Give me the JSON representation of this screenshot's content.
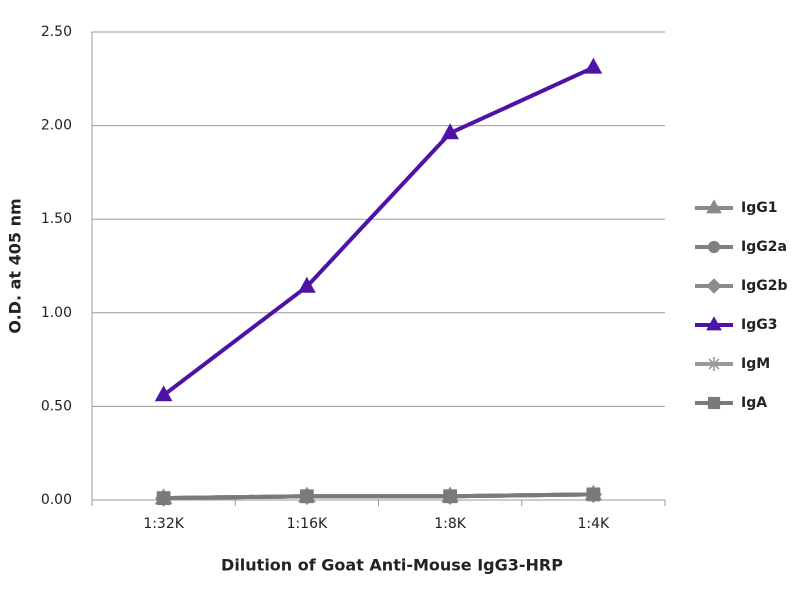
{
  "chart_data": {
    "type": "line",
    "x_label": "Dilution of Goat Anti-Mouse IgG3-HRP",
    "y_label": "O.D. at 405 nm",
    "categories": [
      "1:32K",
      "1:16K",
      "1:8K",
      "1:4K"
    ],
    "series": [
      {
        "name": "IgG1",
        "color": "#8a8a8a",
        "marker": "triangle",
        "values": [
          0.01,
          0.02,
          0.02,
          0.03
        ]
      },
      {
        "name": "IgG2a",
        "color": "#808080",
        "marker": "circle",
        "values": [
          0.01,
          0.02,
          0.02,
          0.03
        ]
      },
      {
        "name": "IgG2b",
        "color": "#8c8c8c",
        "marker": "diamond",
        "values": [
          0.01,
          0.02,
          0.02,
          0.03
        ]
      },
      {
        "name": "IgG3",
        "color": "#4e12a6",
        "marker": "triangle",
        "values": [
          0.56,
          1.14,
          1.96,
          2.31
        ]
      },
      {
        "name": "IgM",
        "color": "#999999",
        "marker": "asterisk",
        "values": [
          0.01,
          0.02,
          0.02,
          0.03
        ]
      },
      {
        "name": "IgA",
        "color": "#7a7a7a",
        "marker": "square",
        "values": [
          0.01,
          0.02,
          0.02,
          0.03
        ]
      }
    ],
    "ylim": [
      0,
      2.5
    ],
    "yticks": [
      {
        "value": 0,
        "label": "0.00"
      },
      {
        "value": 0.5,
        "label": "0.50"
      },
      {
        "value": 1,
        "label": "1.00"
      },
      {
        "value": 1.5,
        "label": "1.50"
      },
      {
        "value": 2,
        "label": "2.00"
      },
      {
        "value": 2.5,
        "label": "2.50"
      }
    ],
    "grid": true,
    "legend": "right"
  }
}
